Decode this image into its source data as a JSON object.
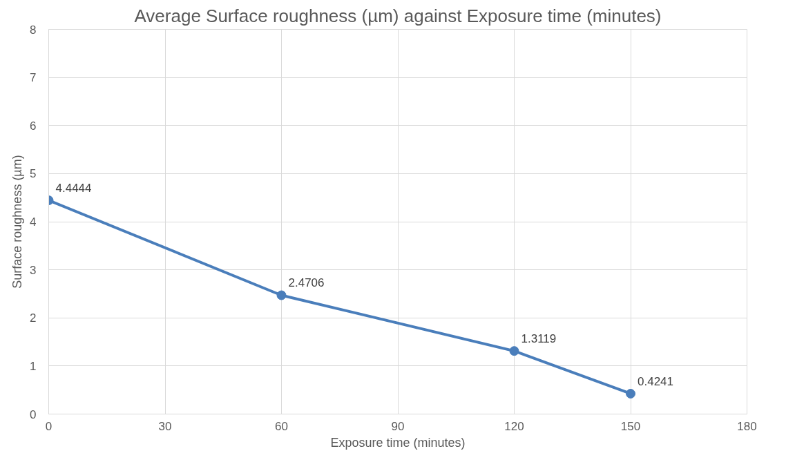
{
  "chart_data": {
    "type": "line",
    "title": "Average Surface roughness (µm) against Exposure time (minutes)",
    "xlabel": "Exposure time (minutes)",
    "ylabel": "Surface roughness (µm)",
    "x": [
      0,
      60,
      120,
      150
    ],
    "series": [
      {
        "color": "#4a7ebb",
        "values": [
          4.4444,
          2.4706,
          1.3119,
          0.4241
        ]
      }
    ],
    "xlim": [
      0,
      180
    ],
    "xticks": [
      0,
      30,
      60,
      90,
      120,
      150,
      180
    ],
    "ylim": [
      0,
      8
    ],
    "yticks": [
      0,
      1,
      2,
      3,
      4,
      5,
      6,
      7,
      8
    ],
    "grid": true,
    "marker": "circle",
    "line_style": "solid",
    "data_labels": true
  }
}
